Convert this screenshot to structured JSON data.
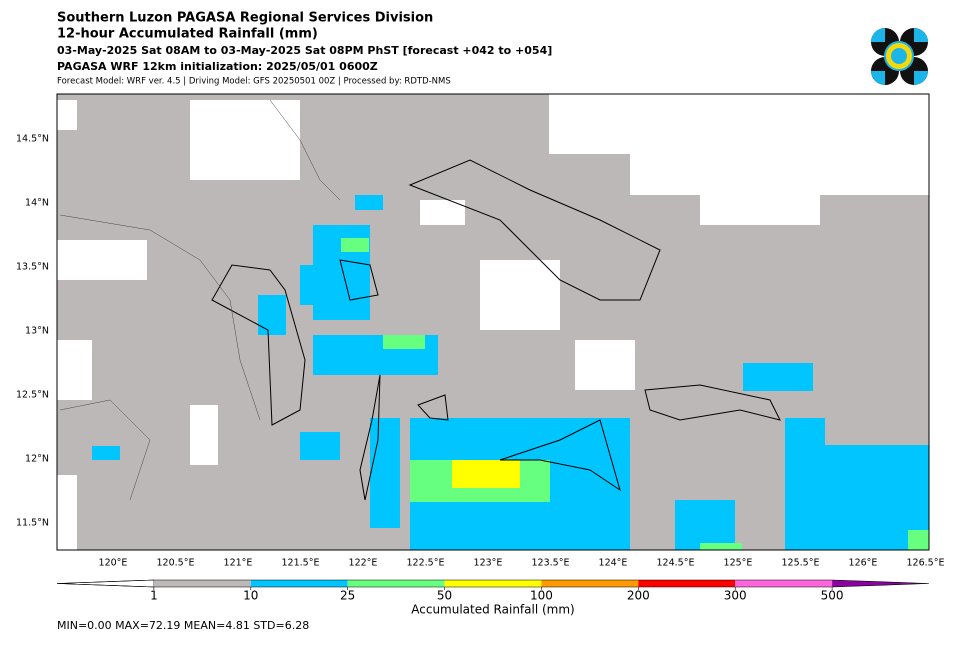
{
  "header": {
    "title": "Southern Luzon PAGASA Regional Services Division",
    "subtitle": "12-hour Accumulated Rainfall (mm)",
    "period": "03-May-2025 Sat 08AM to 03-May-2025 Sat 08PM PhST [forecast +042 to +054]",
    "model": "PAGASA WRF 12km initialization: 2025/05/01 0600Z",
    "note": "Forecast Model: WRF ver. 4.5 | Driving Model: GFS 20250501 00Z | Processed by: RDTD-NMS"
  },
  "map": {
    "lon_labels": [
      "120°E",
      "120.5°E",
      "121°E",
      "121.5°E",
      "122°E",
      "122.5°E",
      "123°E",
      "123.5°E",
      "124°E",
      "124.5°E",
      "125°E",
      "125.5°E",
      "126°E",
      "126.5°E"
    ],
    "lat_labels": [
      "14.5°N",
      "14°N",
      "13.5°N",
      "13°N",
      "12.5°N",
      "12°N",
      "11.5°N"
    ]
  },
  "colorbar": {
    "label": "Accumulated Rainfall (mm)",
    "ticks": [
      1,
      10,
      25,
      50,
      100,
      200,
      300,
      500
    ],
    "colors": [
      "#bdb8b8",
      "#00c5ff",
      "#66ff80",
      "#ffff00",
      "#ff9900",
      "#ff0000",
      "#ff66dd",
      "#8a00a0"
    ]
  },
  "stats": "MIN=0.00   MAX=72.19   MEAN=4.81   STD=6.28"
}
